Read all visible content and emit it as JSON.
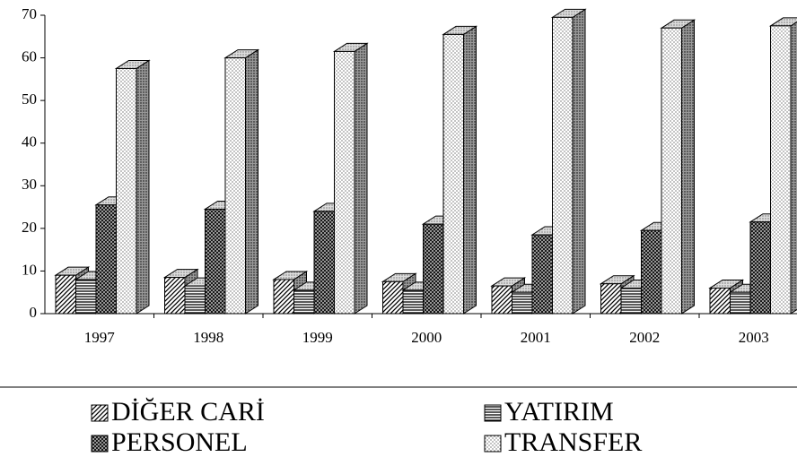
{
  "chart_data": {
    "type": "bar3d",
    "categories": [
      "1997",
      "1998",
      "1999",
      "2000",
      "2001",
      "2002",
      "2003"
    ],
    "series": [
      {
        "name": "DİĞER CARİ",
        "values": [
          9,
          8.5,
          8,
          7.5,
          6.5,
          7,
          6
        ]
      },
      {
        "name": "YATIRIM",
        "values": [
          8,
          6.5,
          5.5,
          5.5,
          5,
          6,
          5
        ]
      },
      {
        "name": "PERSONEL",
        "values": [
          25.5,
          24.5,
          24,
          21,
          18.5,
          19.5,
          21.5
        ]
      },
      {
        "name": "TRANSFER",
        "values": [
          57.5,
          60,
          61.5,
          65.5,
          69.5,
          67,
          67.5
        ]
      }
    ],
    "ylim": [
      0,
      70
    ],
    "yticks": [
      0,
      10,
      20,
      30,
      40,
      50,
      60,
      70
    ]
  }
}
